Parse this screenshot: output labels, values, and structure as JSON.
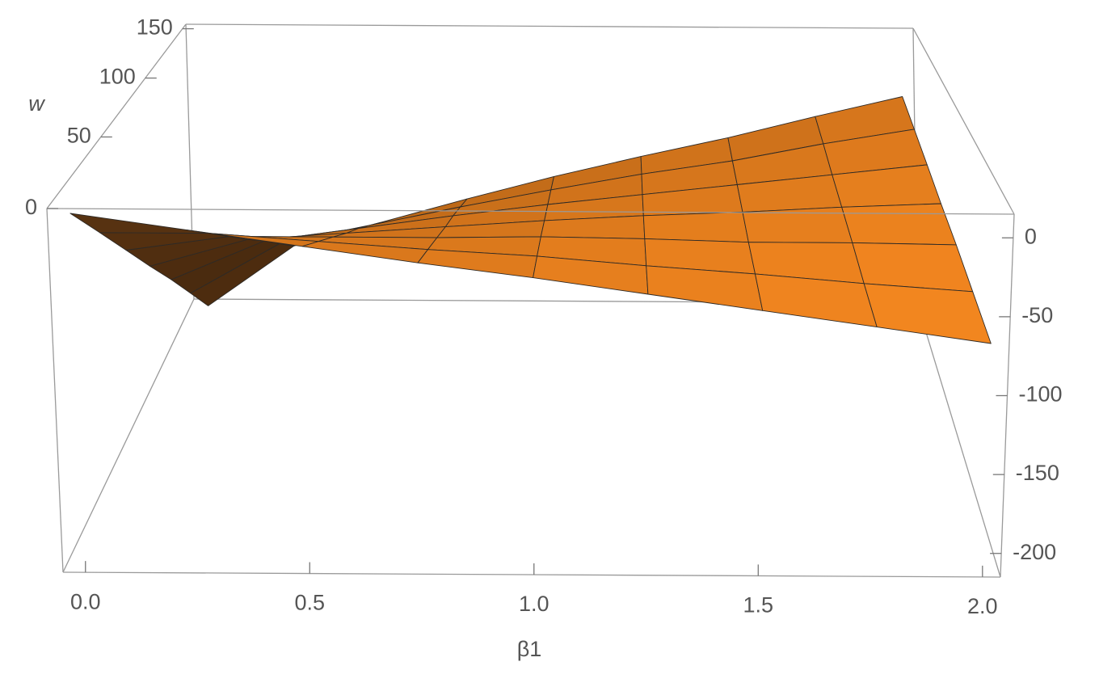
{
  "chart_data": {
    "type": "surface3d",
    "xlabel": "β1",
    "wlabel": "w",
    "x": [
      0,
      0.25,
      0.5,
      0.75,
      1,
      1.25,
      1.5,
      1.75,
      2
    ],
    "w": [
      0,
      25,
      50,
      75,
      100,
      125,
      150
    ],
    "z": [
      [
        12,
        2,
        -8,
        -18,
        -27,
        -37,
        -47,
        -57,
        -67
      ],
      [
        -26,
        -26,
        -31,
        -36,
        -40,
        -46,
        -51,
        -57,
        -62
      ],
      [
        -64,
        -54,
        -54,
        -54,
        -53,
        -54,
        -56,
        -56,
        -57
      ],
      [
        -102,
        -82,
        -77,
        -72,
        -67,
        -63,
        -60,
        -56,
        -53
      ],
      [
        -139,
        -109,
        -99,
        -89,
        -80,
        -72,
        -64,
        -56,
        -48
      ],
      [
        -177,
        -137,
        -122,
        -107,
        -93,
        -80,
        -69,
        -55,
        -43
      ],
      [
        -215,
        -165,
        -145,
        -125,
        -106,
        -89,
        -73,
        -55,
        -38
      ]
    ],
    "xlim": [
      -0.05,
      2.04
    ],
    "wlim": [
      0,
      155
    ],
    "zlim": [
      -215,
      15
    ],
    "xticks": [
      {
        "value": 0,
        "label": "0.0"
      },
      {
        "value": 0.5,
        "label": "0.5"
      },
      {
        "value": 1,
        "label": "1.0"
      },
      {
        "value": 1.5,
        "label": "1.5"
      },
      {
        "value": 2,
        "label": "2.0"
      }
    ],
    "wticks": [
      0,
      50,
      100,
      150
    ],
    "zticks": [
      0,
      -50,
      -100,
      -150,
      -200
    ],
    "color": "#e8801e",
    "back_color": "#5c3512",
    "mesh_color": "#2e2a26",
    "box_color": "#9a9a9a"
  }
}
